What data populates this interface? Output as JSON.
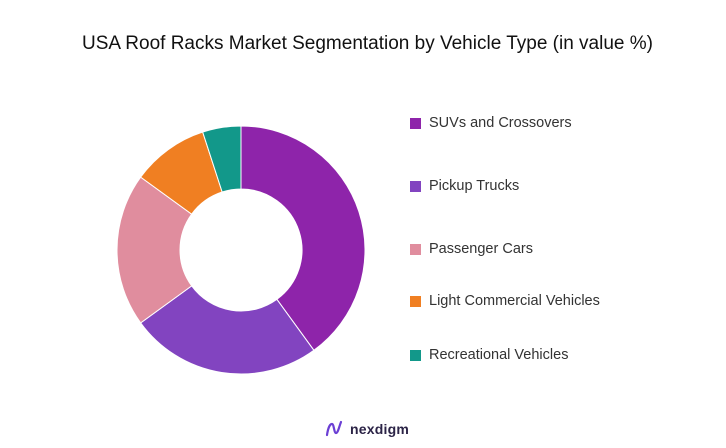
{
  "title": "USA Roof Racks Market Segmentation by Vehicle Type (in value %)",
  "brand": {
    "name": "nexdigm",
    "icon": "nexdigm-logo-icon"
  },
  "chart_data": {
    "type": "pie",
    "variant": "donut",
    "title": "USA Roof Racks Market Segmentation by Vehicle Type (in value %)",
    "legend_position": "right",
    "series": [
      {
        "name": "SUVs and Crossovers",
        "value": 40,
        "color": "#8e24aa"
      },
      {
        "name": "Pickup Trucks",
        "value": 25,
        "color": "#8244c0"
      },
      {
        "name": "Passenger Cars",
        "value": 20,
        "color": "#e08d9e"
      },
      {
        "name": "Light Commercial Vehicles",
        "value": 10,
        "color": "#f07f22"
      },
      {
        "name": "Recreational Vehicles",
        "value": 5,
        "color": "#12988a"
      }
    ]
  }
}
